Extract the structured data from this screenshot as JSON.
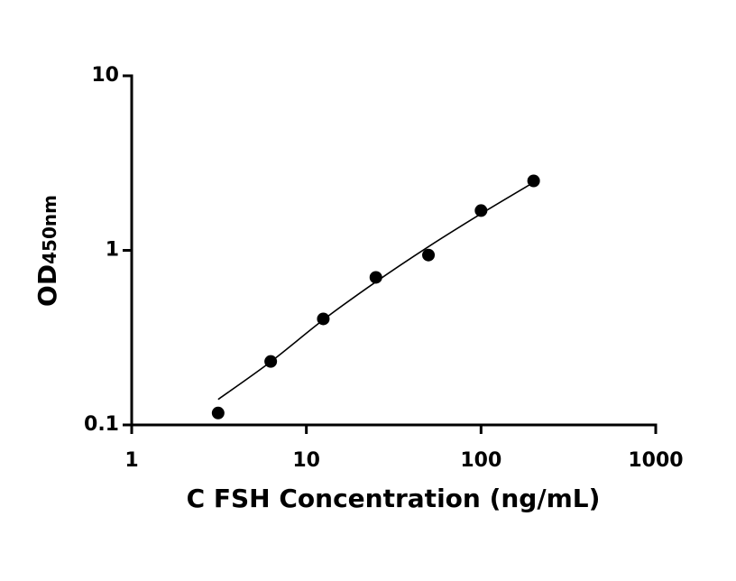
{
  "chart_data": {
    "type": "scatter",
    "xlabel": "C FSH Concentration (ng/mL)",
    "ylabel": "OD",
    "ylabel_sub": "450nm",
    "x": [
      3.125,
      6.25,
      12.5,
      25,
      50,
      100,
      200
    ],
    "series": [
      {
        "color": "#000000",
        "values": [
          0.117,
          0.231,
          0.405,
          0.7,
          0.94,
          1.69,
          2.5
        ]
      }
    ],
    "fit": {
      "color": "#000000",
      "values": [
        0.14,
        0.23,
        0.4,
        0.66,
        1.05,
        1.62,
        2.45
      ]
    },
    "xscale": "log",
    "yscale": "log",
    "xlim": [
      1,
      1000
    ],
    "ylim": [
      0.1,
      10
    ],
    "xticks": [
      1,
      10,
      100,
      1000
    ],
    "yticks": [
      0.1,
      1,
      10
    ],
    "grid": false
  }
}
